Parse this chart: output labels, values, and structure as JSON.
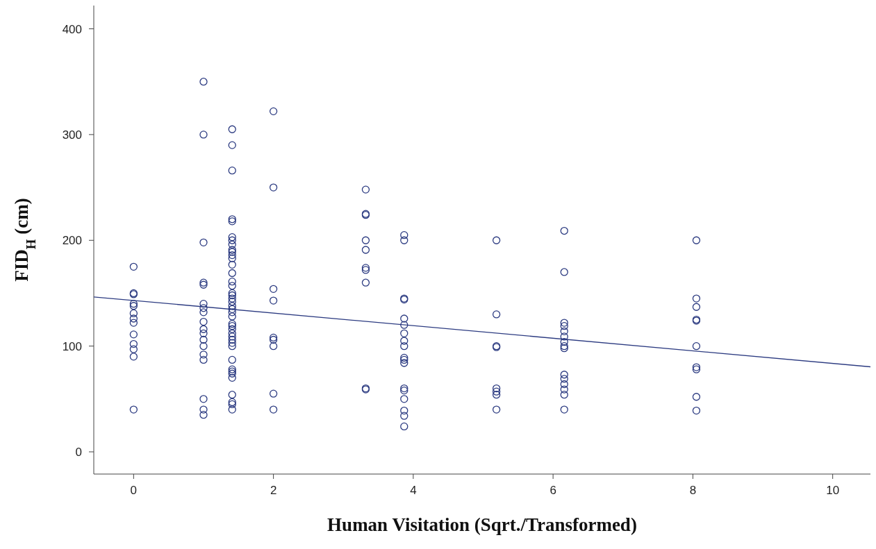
{
  "chart_data": {
    "type": "scatter",
    "xlabel": "Human Visitation (Sqrt./Transformed)",
    "ylabel": "FID$_{H}$ (cm)",
    "xlim": [
      -0.57,
      10.54
    ],
    "ylim": [
      -21,
      422
    ],
    "xticks": [
      0,
      2,
      4,
      6,
      8,
      10
    ],
    "yticks": [
      0,
      100,
      200,
      300,
      400
    ],
    "series": [
      {
        "color": "#2b3a80",
        "marker": "circle",
        "x": [
          0,
          0,
          0,
          0,
          0,
          0,
          0,
          0,
          0,
          0,
          0,
          0,
          0,
          1,
          1,
          1,
          1,
          1,
          1,
          1,
          1,
          1,
          1,
          1,
          1,
          1,
          1,
          1,
          1,
          1,
          1,
          1.41,
          1.41,
          1.41,
          1.41,
          1.41,
          1.41,
          1.41,
          1.41,
          1.41,
          1.41,
          1.41,
          1.41,
          1.41,
          1.41,
          1.41,
          1.41,
          1.41,
          1.41,
          1.41,
          1.41,
          1.41,
          1.41,
          1.41,
          1.41,
          1.41,
          1.41,
          1.41,
          1.41,
          1.41,
          1.41,
          1.41,
          1.41,
          1.41,
          1.41,
          1.41,
          1.41,
          1.41,
          1.41,
          1.41,
          1.41,
          1.41,
          2,
          2,
          2,
          2,
          2,
          2,
          2,
          2,
          2,
          3.32,
          3.32,
          3.32,
          3.32,
          3.32,
          3.32,
          3.32,
          3.32,
          3.32,
          3.32,
          3.87,
          3.87,
          3.87,
          3.87,
          3.87,
          3.87,
          3.87,
          3.87,
          3.87,
          3.87,
          3.87,
          3.87,
          3.87,
          3.87,
          3.87,
          3.87,
          3.87,
          3.87,
          5.19,
          5.19,
          5.19,
          5.19,
          5.19,
          5.19,
          5.19,
          5.19,
          6.16,
          6.16,
          6.16,
          6.16,
          6.16,
          6.16,
          6.16,
          6.16,
          6.16,
          6.16,
          6.16,
          6.16,
          6.16,
          6.16,
          6.16,
          8.05,
          8.05,
          8.05,
          8.05,
          8.05,
          8.05,
          8.05,
          8.05,
          8.05,
          8.05
        ],
        "values": [
          175,
          150,
          149,
          140,
          138,
          131,
          126,
          122,
          111,
          102,
          97,
          90,
          40,
          350,
          300,
          198,
          160,
          158,
          140,
          136,
          132,
          123,
          116,
          112,
          106,
          100,
          92,
          87,
          50,
          40,
          35,
          305,
          290,
          266,
          220,
          218,
          203,
          200,
          196,
          191,
          189,
          186,
          183,
          177,
          169,
          161,
          157,
          150,
          148,
          145,
          142,
          138,
          135,
          132,
          128,
          121,
          119,
          116,
          112,
          109,
          106,
          103,
          100,
          87,
          78,
          76,
          74,
          70,
          54,
          47,
          45,
          40,
          322,
          250,
          154,
          143,
          108,
          106,
          100,
          55,
          40,
          248,
          225,
          224,
          200,
          191,
          174,
          172,
          160,
          60,
          59,
          205,
          200,
          145,
          144,
          126,
          120,
          112,
          105,
          100,
          89,
          87,
          84,
          60,
          58,
          50,
          39,
          34,
          24,
          200,
          130,
          100,
          99,
          60,
          57,
          54,
          40,
          209,
          170,
          122,
          119,
          114,
          109,
          104,
          100,
          98,
          73,
          69,
          64,
          59,
          54,
          40,
          200,
          145,
          137,
          125,
          124,
          100,
          80,
          78,
          52,
          39
        ]
      },
      {
        "type": "line",
        "marker": "none",
        "color": "#2b3a80",
        "x": [
          -0.57,
          10.54
        ],
        "values": [
          146.5,
          80.4
        ]
      }
    ]
  }
}
